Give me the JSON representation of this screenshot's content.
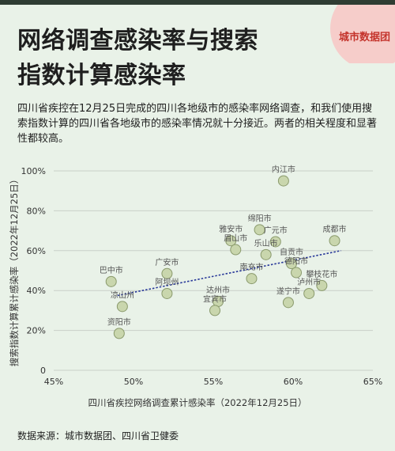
{
  "header": {
    "title_line1": "网络调查感染率与搜索",
    "title_line2": "指数计算感染率",
    "brand": "城市数据团"
  },
  "description": "四川省疾控在12月25日完成的四川各地级市的感染率网络调查，和我们使用搜索指数计算的四川省各地级市的感染率情况就十分接近。两者的相关程度和显著性都较高。",
  "source": "数据来源：城市数据团、四川省卫健委",
  "colors": {
    "point_fill": "#c9d6ad",
    "point_stroke": "#8a9a6c",
    "trend": "#2a3a9a",
    "grid": "#c9d0c9"
  },
  "chart_data": {
    "type": "scatter",
    "xlabel": "四川省疾控网络调查累计感染率（2022年12月25日）",
    "ylabel": "搜索指数计算累计感染率（2022年12月25日）",
    "xlim": [
      45,
      65
    ],
    "ylim": [
      0,
      100
    ],
    "xticks": [
      "45%",
      "50%",
      "55%",
      "60%",
      "65%"
    ],
    "yticks": [
      "0",
      "20%",
      "40%",
      "60%",
      "80%",
      "100%"
    ],
    "grid": "horizontal",
    "trendline": {
      "x": [
        49,
        63
      ],
      "y": [
        37.5,
        60
      ]
    },
    "points": [
      {
        "name": "内江市",
        "x": 59.4,
        "y": 95
      },
      {
        "name": "绵阳市",
        "x": 57.9,
        "y": 70.5
      },
      {
        "name": "雅安市",
        "x": 56.1,
        "y": 65
      },
      {
        "name": "眉山市",
        "x": 56.4,
        "y": 60.5
      },
      {
        "name": "广元市",
        "x": 58.9,
        "y": 64.5
      },
      {
        "name": "乐山市",
        "x": 58.3,
        "y": 58
      },
      {
        "name": "成都市",
        "x": 62.6,
        "y": 65
      },
      {
        "name": "自贡市",
        "x": 59.9,
        "y": 53.5
      },
      {
        "name": "德阳市",
        "x": 60.2,
        "y": 49
      },
      {
        "name": "南充市",
        "x": 57.4,
        "y": 46
      },
      {
        "name": "攀枝花市",
        "x": 61.8,
        "y": 42.5
      },
      {
        "name": "泸州市",
        "x": 61,
        "y": 38.5
      },
      {
        "name": "遂宁市",
        "x": 59.7,
        "y": 34
      },
      {
        "name": "广安市",
        "x": 52.1,
        "y": 48.5
      },
      {
        "name": "阿坝州",
        "x": 52.1,
        "y": 38.5
      },
      {
        "name": "巴中市",
        "x": 48.6,
        "y": 44.5
      },
      {
        "name": "凉山州",
        "x": 49.3,
        "y": 32
      },
      {
        "name": "资阳市",
        "x": 49.1,
        "y": 18.5
      },
      {
        "name": "达州市",
        "x": 55.3,
        "y": 34.5
      },
      {
        "name": "宜宾市",
        "x": 55.1,
        "y": 30
      }
    ]
  }
}
